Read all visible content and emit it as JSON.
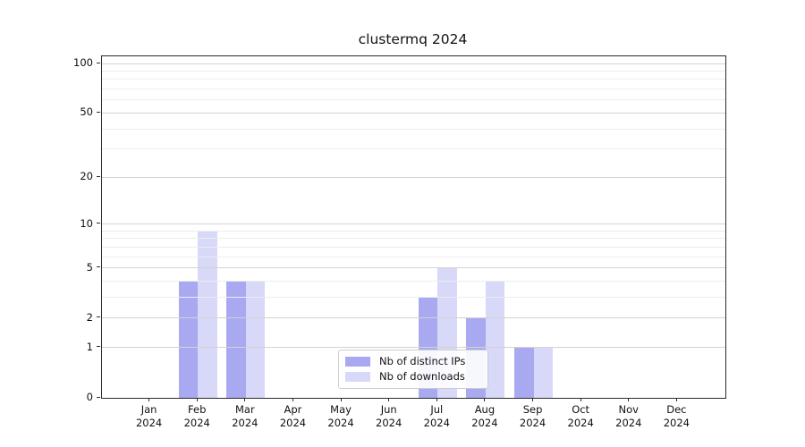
{
  "title": "clustermq 2024",
  "chart_data": {
    "type": "bar",
    "title": "clustermq 2024",
    "year": "2024",
    "categories": [
      "Jan",
      "Feb",
      "Mar",
      "Apr",
      "May",
      "Jun",
      "Jul",
      "Aug",
      "Sep",
      "Oct",
      "Nov",
      "Dec"
    ],
    "series": [
      {
        "name": "Nb of distinct IPs",
        "color": "#a9a9f1",
        "values": [
          0,
          4,
          4,
          0,
          0,
          0,
          3,
          2,
          1,
          0,
          0,
          0
        ]
      },
      {
        "name": "Nb of downloads",
        "color": "#d8d8f8",
        "values": [
          0,
          9,
          4,
          0,
          0,
          0,
          5,
          4,
          1,
          0,
          0,
          0
        ]
      }
    ],
    "xlabel": "",
    "ylabel": "",
    "yscale": "log1p",
    "ylim": [
      0,
      110.5
    ],
    "y_major_ticks": [
      0,
      1,
      2,
      5,
      10,
      20,
      50,
      100
    ],
    "y_minor_gridlines": [
      3,
      4,
      6,
      7,
      8,
      9,
      30,
      40,
      60,
      70,
      80,
      90
    ],
    "grid": "horizontal",
    "legend_position": "lower center"
  },
  "legend": {
    "items": [
      {
        "label": "Nb of distinct IPs",
        "color": "#a9a9f1"
      },
      {
        "label": "Nb of downloads",
        "color": "#d8d8f8"
      }
    ]
  },
  "colors": {
    "background": "#ffffff",
    "spine": "#2b2b2b",
    "grid_major": "#d2d2d2",
    "grid_minor": "#ededed",
    "text": "#111111"
  }
}
